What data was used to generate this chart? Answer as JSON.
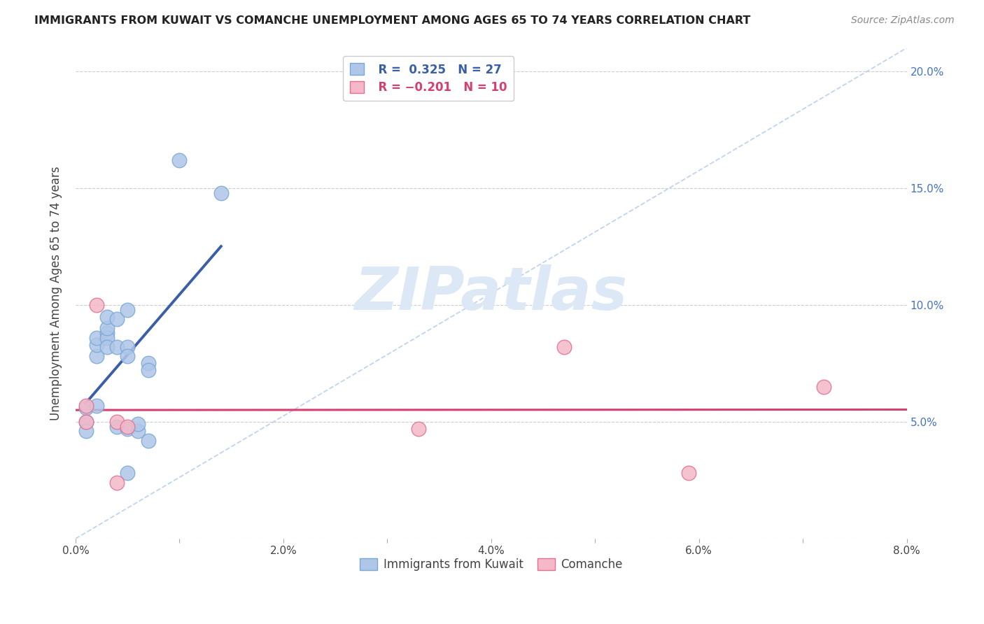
{
  "title": "IMMIGRANTS FROM KUWAIT VS COMANCHE UNEMPLOYMENT AMONG AGES 65 TO 74 YEARS CORRELATION CHART",
  "source": "Source: ZipAtlas.com",
  "ylabel": "Unemployment Among Ages 65 to 74 years",
  "legend_label1": "Immigrants from Kuwait",
  "legend_label2": "Comanche",
  "blue_scatter_color": "#aec6e8",
  "blue_edge_color": "#7aa8d4",
  "pink_scatter_color": "#f4b8c8",
  "pink_edge_color": "#e07090",
  "blue_line_color": "#3a5fa8",
  "pink_line_color": "#d44070",
  "dashed_line_color": "#c0d4f0",
  "watermark_text": "ZIPatlas",
  "watermark_color": "#dce8f5",
  "kuwait_x": [
    0.001,
    0.001,
    0.001,
    0.002,
    0.002,
    0.002,
    0.002,
    0.003,
    0.003,
    0.003,
    0.003,
    0.003,
    0.004,
    0.004,
    0.004,
    0.005,
    0.005,
    0.005,
    0.005,
    0.005,
    0.006,
    0.006,
    0.007,
    0.007,
    0.007,
    0.01,
    0.014
  ],
  "kuwait_y": [
    0.056,
    0.05,
    0.046,
    0.057,
    0.078,
    0.083,
    0.086,
    0.088,
    0.086,
    0.082,
    0.09,
    0.095,
    0.094,
    0.082,
    0.048,
    0.098,
    0.082,
    0.078,
    0.047,
    0.028,
    0.046,
    0.049,
    0.075,
    0.072,
    0.042,
    0.162,
    0.148
  ],
  "comanche_x": [
    0.001,
    0.001,
    0.002,
    0.004,
    0.004,
    0.005,
    0.033,
    0.047,
    0.059,
    0.072
  ],
  "comanche_y": [
    0.057,
    0.05,
    0.1,
    0.05,
    0.024,
    0.048,
    0.047,
    0.082,
    0.028,
    0.065
  ],
  "xlim": [
    0.0,
    0.08
  ],
  "ylim": [
    0.0,
    0.21
  ],
  "xticks": [
    0.0,
    0.01,
    0.02,
    0.03,
    0.04,
    0.05,
    0.06,
    0.07,
    0.08
  ],
  "xtick_labels": [
    "0.0%",
    "",
    "2.0%",
    "",
    "4.0%",
    "",
    "6.0%",
    "",
    "8.0%"
  ],
  "yticks": [
    0.0,
    0.05,
    0.1,
    0.15,
    0.2
  ],
  "ytick_labels": [
    "",
    "5.0%",
    "10.0%",
    "15.0%",
    "20.0%"
  ]
}
